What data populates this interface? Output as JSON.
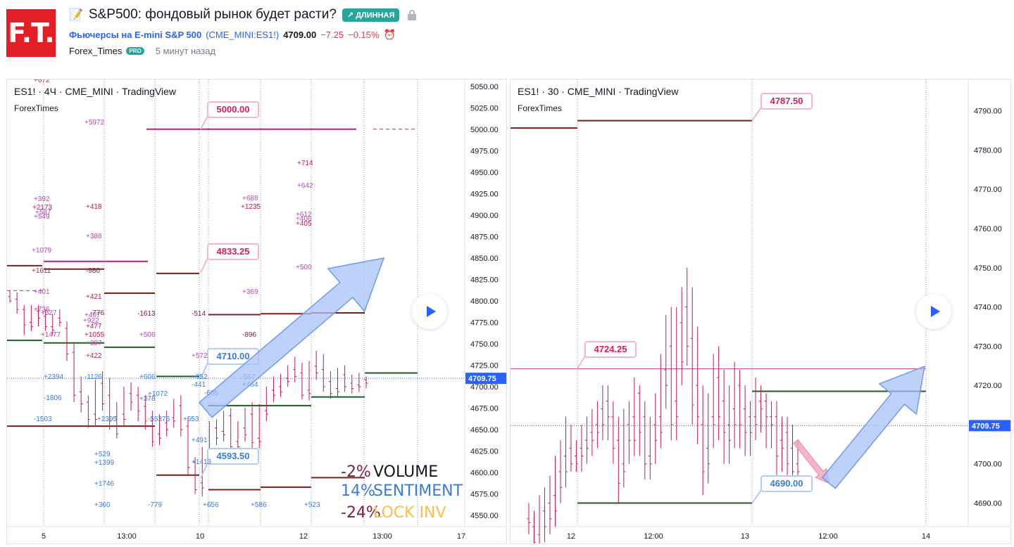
{
  "header": {
    "logo_text": "F.T.",
    "title": "S&P500: фондовый рынок будет расти?",
    "badge": "↗ ДЛИННАЯ",
    "symbol_name": "Фьючерсы на E-mini S&P 500",
    "symbol_code": "(CME_MINI:ES1!)",
    "price": "4709.00",
    "change": "−7.25",
    "change_pct": "−0.15%",
    "author": "Forex_Times",
    "author_badge": "PRO",
    "time_ago": "5 минут назад"
  },
  "colors": {
    "up": "#2962ff",
    "down": "#c2185b",
    "level_dark": "#7b1f1f",
    "level_green": "#1b5e20",
    "level_magenta": "#c2188b",
    "arrow_fill": "#a8c2f5",
    "label_pink": "#d81b60",
    "label_blue": "#3a7bd5",
    "accent_teal": "#26a69a"
  },
  "chart_data": [
    {
      "type": "candlestick",
      "title": "ES1! · 4Ч · CME_MINI · TradingView",
      "subtitle": "ForexTimes",
      "ylim": [
        4537,
        5058
      ],
      "y_ticks": [
        "5050.00",
        "5025.00",
        "5000.00",
        "4975.00",
        "4950.00",
        "4925.00",
        "4900.00",
        "4875.00",
        "4850.00",
        "4825.00",
        "4800.00",
        "4775.00",
        "4750.00",
        "4725.00",
        "4700.00",
        "4675.00",
        "4650.00",
        "4625.00",
        "4600.00",
        "4575.00",
        "4550.00"
      ],
      "x_ticks": [
        "5",
        "13:00",
        "10",
        "12",
        "13:00",
        "17"
      ],
      "current_price": "4709.75",
      "price_labels": [
        {
          "text": "5000.00",
          "price": 5000,
          "style": "pink"
        },
        {
          "text": "4833.25",
          "price": 4833.25,
          "style": "pink"
        },
        {
          "text": "4710.00",
          "price": 4710,
          "style": "blue"
        },
        {
          "text": "4593.50",
          "price": 4593.5,
          "style": "blue"
        }
      ],
      "indicators": [
        {
          "value": "-2%",
          "name": "VOLUME",
          "value_color": "#7b1f3a",
          "name_color": "#131722"
        },
        {
          "value": "14%",
          "name": "SENTIMENT",
          "value_color": "#3a7bd5",
          "name_color": "#3a7bd5"
        },
        {
          "value": "-24%",
          "name": "LOCK INV",
          "value_color": "#7b1f3a",
          "name_color": "#f2c14e"
        }
      ],
      "order_flow_labels": [
        "+672",
        "+5972",
        "+392",
        "+2173",
        "+587",
        "+549",
        "+418",
        "+388",
        "+1079",
        "+1611",
        "-980",
        "+401",
        "+421",
        "+736",
        "+527",
        "-776",
        "+407",
        "+922",
        "+477",
        "-1613",
        "+1477",
        "+1055",
        "+387",
        "+506",
        "+422",
        "+572",
        "-514",
        "+714",
        "+642",
        "+688",
        "+1235",
        "+612",
        "+406",
        "+405",
        "+500",
        "+369",
        "-896",
        "+2394",
        "-1126",
        "+606",
        "+378",
        "+1072",
        "+952",
        "-441",
        "-605",
        "-567",
        "+464",
        "-1806",
        "-1503",
        "+2395",
        "-55375",
        "+553",
        "+491",
        "+1413",
        "+529",
        "+1399",
        "+1746",
        "+360",
        "-779",
        "+656",
        "+586",
        "+523"
      ],
      "candles": [
        [
          4805,
          4812,
          4800,
          4798
        ],
        [
          4802,
          4810,
          4790,
          4785
        ],
        [
          4790,
          4795,
          4772,
          4760
        ],
        [
          4775,
          4795,
          4770,
          4765
        ],
        [
          4788,
          4795,
          4780,
          4770
        ],
        [
          4782,
          4790,
          4770,
          4765
        ],
        [
          4770,
          4785,
          4766,
          4760
        ],
        [
          4780,
          4790,
          4775,
          4770
        ],
        [
          4768,
          4776,
          4738,
          4730
        ],
        [
          4740,
          4750,
          4690,
          4682
        ],
        [
          4694,
          4712,
          4680,
          4670
        ],
        [
          4682,
          4690,
          4662,
          4652
        ],
        [
          4668,
          4708,
          4662,
          4655
        ],
        [
          4704,
          4718,
          4680,
          4672
        ],
        [
          4690,
          4710,
          4660,
          4650
        ],
        [
          4665,
          4682,
          4645,
          4640
        ],
        [
          4668,
          4700,
          4662,
          4655
        ],
        [
          4692,
          4705,
          4682,
          4672
        ],
        [
          4690,
          4700,
          4672,
          4660
        ],
        [
          4677,
          4690,
          4660,
          4650
        ],
        [
          4660,
          4672,
          4636,
          4630
        ],
        [
          4645,
          4668,
          4640,
          4632
        ],
        [
          4658,
          4672,
          4650,
          4642
        ],
        [
          4664,
          4686,
          4660,
          4652
        ],
        [
          4678,
          4690,
          4650,
          4642
        ],
        [
          4654,
          4664,
          4606,
          4598
        ],
        [
          4612,
          4618,
          4580,
          4575
        ],
        [
          4588,
          4630,
          4582,
          4572
        ],
        [
          4622,
          4660,
          4618,
          4610
        ],
        [
          4652,
          4662,
          4640,
          4632
        ],
        [
          4648,
          4672,
          4644,
          4636
        ],
        [
          4666,
          4675,
          4630,
          4624
        ],
        [
          4636,
          4660,
          4630,
          4622
        ],
        [
          4652,
          4676,
          4644,
          4636
        ],
        [
          4668,
          4682,
          4635,
          4628
        ],
        [
          4640,
          4680,
          4636,
          4628
        ],
        [
          4672,
          4700,
          4668,
          4660
        ],
        [
          4696,
          4712,
          4690,
          4682
        ],
        [
          4700,
          4715,
          4694,
          4688
        ],
        [
          4710,
          4725,
          4706,
          4700
        ],
        [
          4720,
          4735,
          4712,
          4705
        ],
        [
          4716,
          4728,
          4690,
          4685
        ],
        [
          4696,
          4730,
          4692,
          4684
        ],
        [
          4724,
          4742,
          4716,
          4708
        ],
        [
          4720,
          4738,
          4700,
          4694
        ],
        [
          4706,
          4718,
          4692,
          4686
        ],
        [
          4698,
          4722,
          4694,
          4688
        ],
        [
          4714,
          4725,
          4700,
          4694
        ],
        [
          4704,
          4714,
          4698,
          4692
        ],
        [
          4702,
          4716,
          4700,
          4694
        ],
        [
          4708,
          4712,
          4704,
          4698
        ]
      ]
    },
    {
      "type": "candlestick",
      "title": "ES1! · 30 · CME_MINI · TradingView",
      "subtitle": "ForexTimes",
      "ylim": [
        4684,
        4798
      ],
      "y_ticks": [
        "4790.00",
        "4780.00",
        "4770.00",
        "4760.00",
        "4750.00",
        "4740.00",
        "4730.00",
        "4720.00",
        "4710.00",
        "4700.00",
        "4690.00"
      ],
      "x_ticks": [
        "12",
        "12:00",
        "13",
        "12:00",
        "14"
      ],
      "current_price": "4709.75",
      "price_labels": [
        {
          "text": "4787.50",
          "price": 4787.5,
          "style": "pink"
        },
        {
          "text": "4724.25",
          "price": 4724.25,
          "style": "pink"
        },
        {
          "text": "4690.00",
          "price": 4690,
          "style": "blue"
        }
      ],
      "candles": [
        [
          4686,
          4690,
          4685,
          4682
        ],
        [
          4684,
          4688,
          4680,
          4676
        ],
        [
          4682,
          4692,
          4679,
          4675
        ],
        [
          4688,
          4694,
          4684,
          4680
        ],
        [
          4690,
          4697,
          4686,
          4682
        ],
        [
          4692,
          4702,
          4688,
          4684
        ],
        [
          4698,
          4706,
          4694,
          4690
        ],
        [
          4702,
          4712,
          4698,
          4694
        ],
        [
          4704,
          4710,
          4700,
          4698
        ],
        [
          4702,
          4706,
          4700,
          4698
        ],
        [
          4704,
          4710,
          4702,
          4698
        ],
        [
          4706,
          4712,
          4704,
          4700
        ],
        [
          4708,
          4714,
          4706,
          4702
        ],
        [
          4710,
          4716,
          4708,
          4704
        ],
        [
          4714,
          4720,
          4710,
          4706
        ],
        [
          4716,
          4720,
          4712,
          4706
        ],
        [
          4712,
          4716,
          4704,
          4700
        ],
        [
          4706,
          4712,
          4695,
          4690
        ],
        [
          4700,
          4714,
          4698,
          4694
        ],
        [
          4710,
          4716,
          4706,
          4700
        ],
        [
          4712,
          4722,
          4706,
          4702
        ],
        [
          4718,
          4720,
          4708,
          4702
        ],
        [
          4712,
          4716,
          4700,
          4696
        ],
        [
          4702,
          4712,
          4700,
          4696
        ],
        [
          4710,
          4718,
          4706,
          4700
        ],
        [
          4712,
          4728,
          4708,
          4704
        ],
        [
          4724,
          4738,
          4720,
          4714
        ],
        [
          4730,
          4740,
          4710,
          4706
        ],
        [
          4716,
          4740,
          4712,
          4706
        ],
        [
          4736,
          4745,
          4726,
          4720
        ],
        [
          4740,
          4750,
          4730,
          4725
        ],
        [
          4732,
          4745,
          4715,
          4710
        ],
        [
          4720,
          4735,
          4712,
          4705
        ],
        [
          4710,
          4720,
          4698,
          4692
        ],
        [
          4704,
          4718,
          4700,
          4695
        ],
        [
          4712,
          4728,
          4710,
          4704
        ],
        [
          4722,
          4730,
          4712,
          4706
        ],
        [
          4716,
          4724,
          4708,
          4700
        ],
        [
          4710,
          4720,
          4706,
          4700
        ],
        [
          4714,
          4726,
          4710,
          4704
        ],
        [
          4720,
          4724,
          4710,
          4704
        ],
        [
          4714,
          4720,
          4708,
          4702
        ],
        [
          4712,
          4716,
          4708,
          4702
        ],
        [
          4712,
          4722,
          4710,
          4706
        ],
        [
          4716,
          4720,
          4714,
          4708
        ],
        [
          4716,
          4718,
          4712,
          4704
        ],
        [
          4712,
          4716,
          4710,
          4704
        ],
        [
          4712,
          4716,
          4702,
          4696
        ],
        [
          4706,
          4712,
          4704,
          4698
        ],
        [
          4708,
          4712,
          4700,
          4695
        ],
        [
          4704,
          4710,
          4698,
          4694
        ],
        [
          4700,
          4706,
          4698,
          4694
        ]
      ]
    }
  ]
}
